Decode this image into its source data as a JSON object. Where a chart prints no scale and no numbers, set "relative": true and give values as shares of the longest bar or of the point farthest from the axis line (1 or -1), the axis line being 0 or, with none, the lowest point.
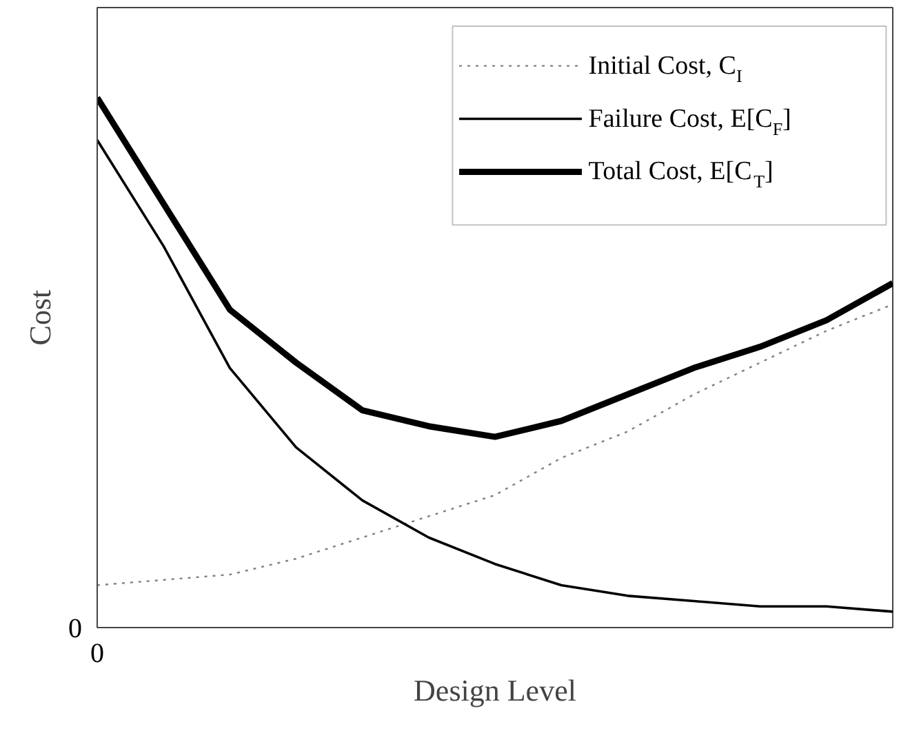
{
  "chart_data": {
    "type": "line",
    "relative": true,
    "xlabel": "Design Level",
    "ylabel": "Cost",
    "categories": [
      null,
      null,
      null,
      null,
      null,
      null,
      null,
      null,
      null,
      null,
      null,
      null,
      null
    ],
    "series": [
      {
        "name": "Initial Cost, C$_{I}$",
        "color": "#808080",
        "line_style": "dotted",
        "values": [
          0.08,
          0.09,
          0.1,
          0.13,
          0.17,
          0.21,
          0.25,
          0.32,
          0.37,
          0.44,
          0.5,
          0.56,
          0.61
        ]
      },
      {
        "name": "Failure Cost, E[C$_{F}$]",
        "color": "#000000",
        "line_style": "solid",
        "values": [
          0.92,
          0.72,
          0.49,
          0.34,
          0.24,
          0.17,
          0.12,
          0.08,
          0.06,
          0.05,
          0.04,
          0.04,
          0.03
        ]
      },
      {
        "name": "Total Cost, E[C$_{T}$]",
        "color": "#000000",
        "line_style": "solid",
        "values": [
          1,
          0.8,
          0.6,
          0.5,
          0.41,
          0.38,
          0.36,
          0.39,
          0.44,
          0.49,
          0.53,
          0.58,
          0.65
        ]
      }
    ],
    "annotations": [
      "0",
      "0"
    ],
    "legend": "top right",
    "grid": false,
    "marker": "none"
  }
}
